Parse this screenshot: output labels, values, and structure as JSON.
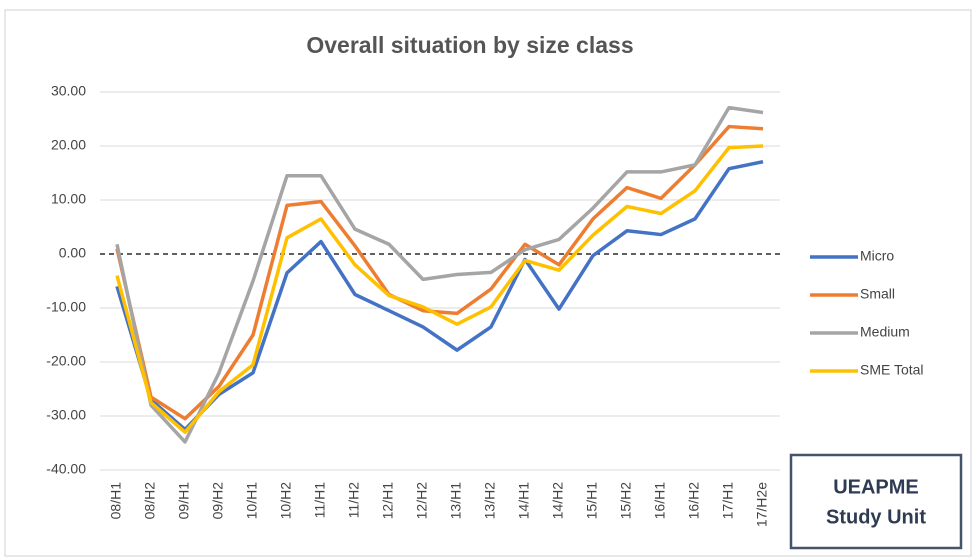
{
  "chart_data": {
    "type": "line",
    "title": "Overall situation by size class",
    "categories": [
      "08/H1",
      "08/H2",
      "09/H1",
      "09/H2",
      "10/H1",
      "10/H2",
      "11/H1",
      "11/H2",
      "12/H1",
      "12/H2",
      "13/H1",
      "13/H2",
      "14/H1",
      "14/H2",
      "15/H1",
      "15/H2",
      "16/H1",
      "16/H2",
      "17/H1",
      "17/H2e"
    ],
    "series": [
      {
        "name": "Micro",
        "color": "#4472c4",
        "values": [
          -6,
          -27,
          -32.5,
          -26,
          -22,
          -3.5,
          2.3,
          -7.5,
          -10.5,
          -13.5,
          -17.8,
          -13.5,
          -1,
          -10.2,
          -0.3,
          4.3,
          3.6,
          6.5,
          15.8,
          17.1
        ]
      },
      {
        "name": "Small",
        "color": "#ed7d31",
        "values": [
          1,
          -26.5,
          -30.5,
          -24.5,
          -15,
          9,
          9.7,
          1.5,
          -7.5,
          -10.5,
          -11,
          -6.5,
          1.8,
          -2,
          6.5,
          12.3,
          10.3,
          16.5,
          23.6,
          23.2
        ]
      },
      {
        "name": "Medium",
        "color": "#a5a5a5",
        "values": [
          1.8,
          -28,
          -34.8,
          -22,
          -5,
          14.5,
          14.5,
          4.6,
          1.8,
          -4.7,
          -3.8,
          -3.4,
          0.8,
          2.7,
          8.5,
          15.2,
          15.2,
          16.5,
          27.1,
          26.2
        ]
      },
      {
        "name": "SME Total",
        "color": "#ffc000",
        "values": [
          -4,
          -27.5,
          -33,
          -25.5,
          -20.5,
          3,
          6.5,
          -2,
          -7.7,
          -9.8,
          -13,
          -9.8,
          -1.2,
          -3,
          3.5,
          8.8,
          7.5,
          11.7,
          19.7,
          20
        ]
      }
    ],
    "ylim": [
      -40,
      30
    ],
    "yticks": [
      {
        "value": -40,
        "label": "-40.00"
      },
      {
        "value": -30,
        "label": "-30.00"
      },
      {
        "value": -20,
        "label": "-20.00"
      },
      {
        "value": -10,
        "label": "-10.00"
      },
      {
        "value": 0,
        "label": "0.00"
      },
      {
        "value": 10,
        "label": "10.00"
      },
      {
        "value": 20,
        "label": "20.00"
      },
      {
        "value": 30,
        "label": "30.00"
      }
    ],
    "grid": true,
    "legend": "right"
  },
  "annotation_box": {
    "lines": [
      "UEAPME",
      "Study Unit"
    ]
  }
}
